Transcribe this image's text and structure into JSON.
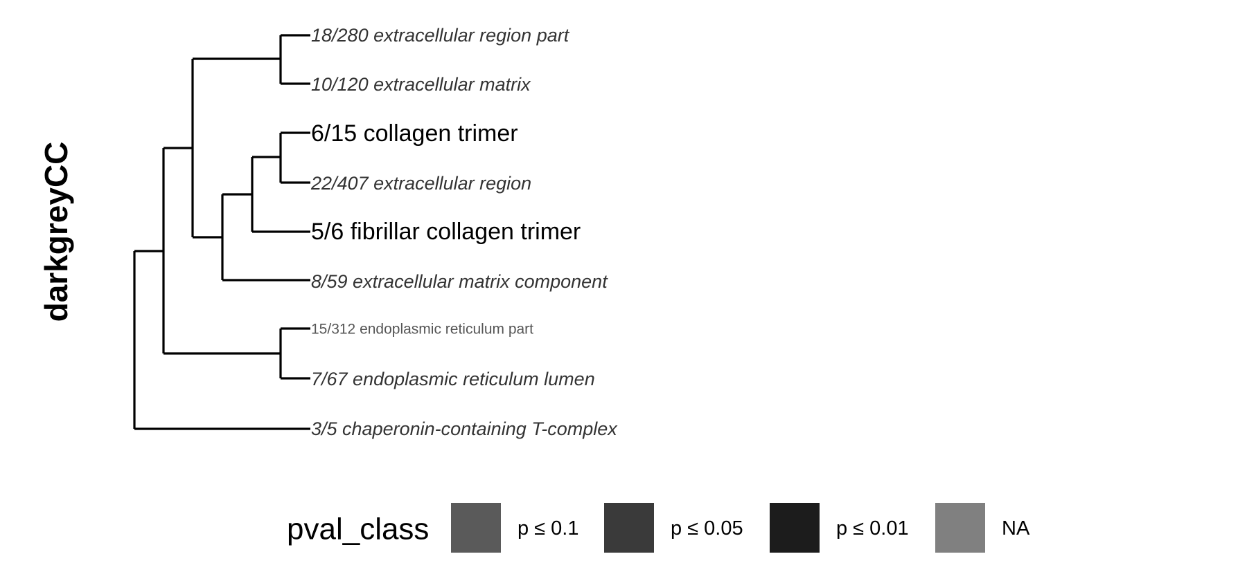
{
  "panel_title": "darkgreyCC",
  "tree": {
    "leaves": [
      {
        "label": "18/280 extracellular region part",
        "pval_class": "NA"
      },
      {
        "label": "10/120 extracellular matrix",
        "pval_class": "NA"
      },
      {
        "label": "6/15 collagen trimer",
        "pval_class": "p ≤ 0.01"
      },
      {
        "label": "22/407 extracellular region",
        "pval_class": "NA"
      },
      {
        "label": "5/6 fibrillar collagen trimer",
        "pval_class": "p ≤ 0.01"
      },
      {
        "label": "8/59 extracellular matrix component",
        "pval_class": "NA"
      },
      {
        "label": "15/312 endoplasmic reticulum part",
        "pval_class": "p ≤ 0.1"
      },
      {
        "label": "7/67 endoplasmic reticulum lumen",
        "pval_class": "NA"
      },
      {
        "label": "3/5 chaperonin-containing T-complex",
        "pval_class": "NA"
      }
    ]
  },
  "legend": {
    "title": "pval_class",
    "items": [
      {
        "label": "p ≤ 0.1",
        "color": "#5a5a5a"
      },
      {
        "label": "p ≤ 0.05",
        "color": "#3a3a3a"
      },
      {
        "label": "p ≤ 0.01",
        "color": "#1c1c1c"
      },
      {
        "label": "NA",
        "color": "#808080"
      }
    ]
  }
}
